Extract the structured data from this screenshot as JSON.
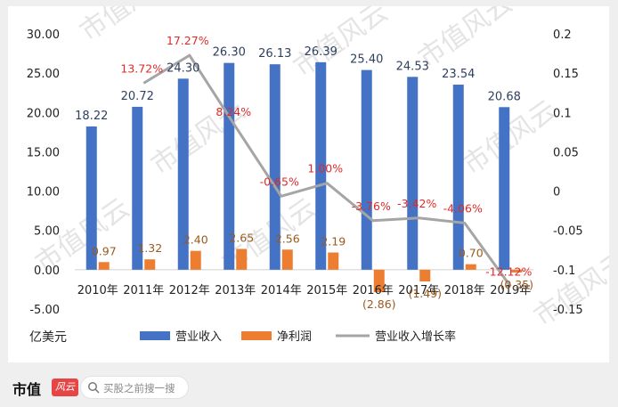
{
  "chart_data": {
    "type": "bar",
    "categories": [
      "2010年",
      "2011年",
      "2012年",
      "2013年",
      "2014年",
      "2015年",
      "2016年",
      "2017年",
      "2018年",
      "2019年"
    ],
    "series": [
      {
        "name": "营业收入",
        "type": "bar",
        "axis": "left",
        "color": "#4472c4",
        "values": [
          18.22,
          20.72,
          24.3,
          26.3,
          26.13,
          26.39,
          25.4,
          24.53,
          23.54,
          20.68
        ],
        "labels": [
          "18.22",
          "20.72",
          "24.30",
          "26.30",
          "26.13",
          "26.39",
          "25.40",
          "24.53",
          "23.54",
          "20.68"
        ]
      },
      {
        "name": "净利润",
        "type": "bar",
        "axis": "left",
        "color": "#ed7d31",
        "values": [
          0.97,
          1.32,
          2.4,
          2.65,
          2.56,
          2.19,
          -2.86,
          -1.49,
          0.7,
          -0.35
        ],
        "labels": [
          "0.97",
          "1.32",
          "2.40",
          "2.65",
          "2.56",
          "2.19",
          "(2.86)",
          "(1.49)",
          "0.70",
          "(0.35)"
        ]
      },
      {
        "name": "营业收入增长率",
        "type": "line",
        "axis": "right",
        "color": "#a5a5a5",
        "values": [
          null,
          0.1372,
          0.1727,
          0.0824,
          -0.0065,
          0.01,
          -0.0376,
          -0.0342,
          -0.0406,
          -0.1212
        ],
        "labels": [
          "",
          "13.72%",
          "17.27%",
          "8.24%",
          "-0.65%",
          "1.00%",
          "-3.76%",
          "-3.42%",
          "-4.06%",
          "-12.12%"
        ]
      }
    ],
    "ylim_left": [
      -5,
      30
    ],
    "yticks_left": [
      "30.00",
      "25.00",
      "20.00",
      "15.00",
      "10.00",
      "5.00",
      "0.00",
      "-5.00"
    ],
    "ylim_right": [
      -0.15,
      0.2
    ],
    "yticks_right": [
      "0.2",
      "0.15",
      "0.1",
      "0.05",
      "0",
      "-0.05",
      "-0.1",
      "-0.15"
    ],
    "unit_label": "亿美元",
    "legend_position": "bottom",
    "grid": false
  },
  "watermark": "市值风云",
  "footer": {
    "brand": "市值",
    "brand_mark": "风云",
    "search_placeholder": "买股之前搜一搜"
  }
}
